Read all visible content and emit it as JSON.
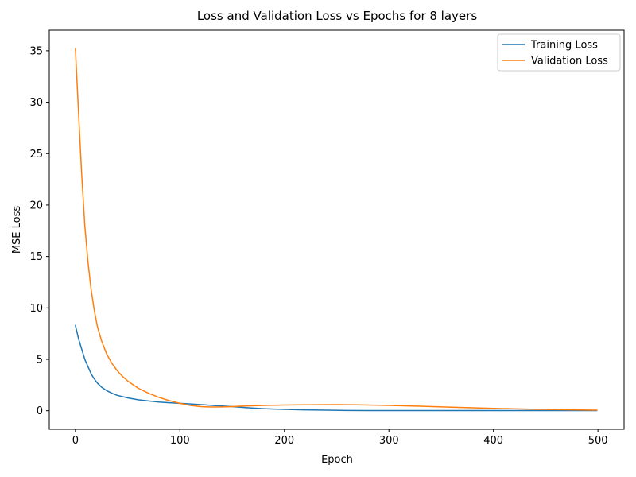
{
  "chart_data": {
    "type": "line",
    "title": "Loss and Validation Loss vs Epochs for 8 layers",
    "xlabel": "Epoch",
    "ylabel": "MSE Loss",
    "xlim": [
      -25,
      525
    ],
    "ylim": [
      -1.8,
      37
    ],
    "xticks": [
      0,
      100,
      200,
      300,
      400,
      500
    ],
    "yticks": [
      0,
      5,
      10,
      15,
      20,
      25,
      30,
      35
    ],
    "grid": false,
    "legend_position": "top-right",
    "series": [
      {
        "name": "Training Loss",
        "color": "#1f77b4",
        "x": [
          0,
          3,
          6,
          9,
          12,
          15,
          18,
          21,
          25,
          30,
          35,
          40,
          50,
          60,
          70,
          80,
          90,
          100,
          110,
          120,
          130,
          140,
          150,
          160,
          170,
          180,
          190,
          200,
          220,
          240,
          260,
          280,
          300,
          350,
          400,
          450,
          499
        ],
        "y": [
          8.3,
          7.0,
          6.0,
          5.0,
          4.3,
          3.6,
          3.1,
          2.7,
          2.3,
          1.95,
          1.7,
          1.5,
          1.25,
          1.07,
          0.95,
          0.85,
          0.78,
          0.72,
          0.66,
          0.6,
          0.53,
          0.46,
          0.4,
          0.33,
          0.26,
          0.2,
          0.16,
          0.13,
          0.08,
          0.05,
          0.03,
          0.02,
          0.02,
          0.02,
          0.02,
          0.02,
          0.02
        ]
      },
      {
        "name": "Validation Loss",
        "color": "#ff7f0e",
        "x": [
          0,
          3,
          6,
          9,
          12,
          15,
          18,
          21,
          25,
          30,
          35,
          40,
          45,
          50,
          60,
          70,
          80,
          90,
          100,
          110,
          120,
          130,
          140,
          150,
          160,
          180,
          200,
          220,
          250,
          270,
          300,
          330,
          360,
          400,
          440,
          470,
          499
        ],
        "y": [
          35.2,
          29.0,
          23.0,
          18.0,
          14.5,
          11.8,
          9.8,
          8.2,
          6.8,
          5.5,
          4.6,
          3.9,
          3.35,
          2.9,
          2.2,
          1.7,
          1.3,
          0.98,
          0.72,
          0.52,
          0.4,
          0.36,
          0.37,
          0.4,
          0.45,
          0.52,
          0.56,
          0.58,
          0.6,
          0.58,
          0.52,
          0.44,
          0.34,
          0.23,
          0.14,
          0.09,
          0.06
        ]
      }
    ]
  }
}
